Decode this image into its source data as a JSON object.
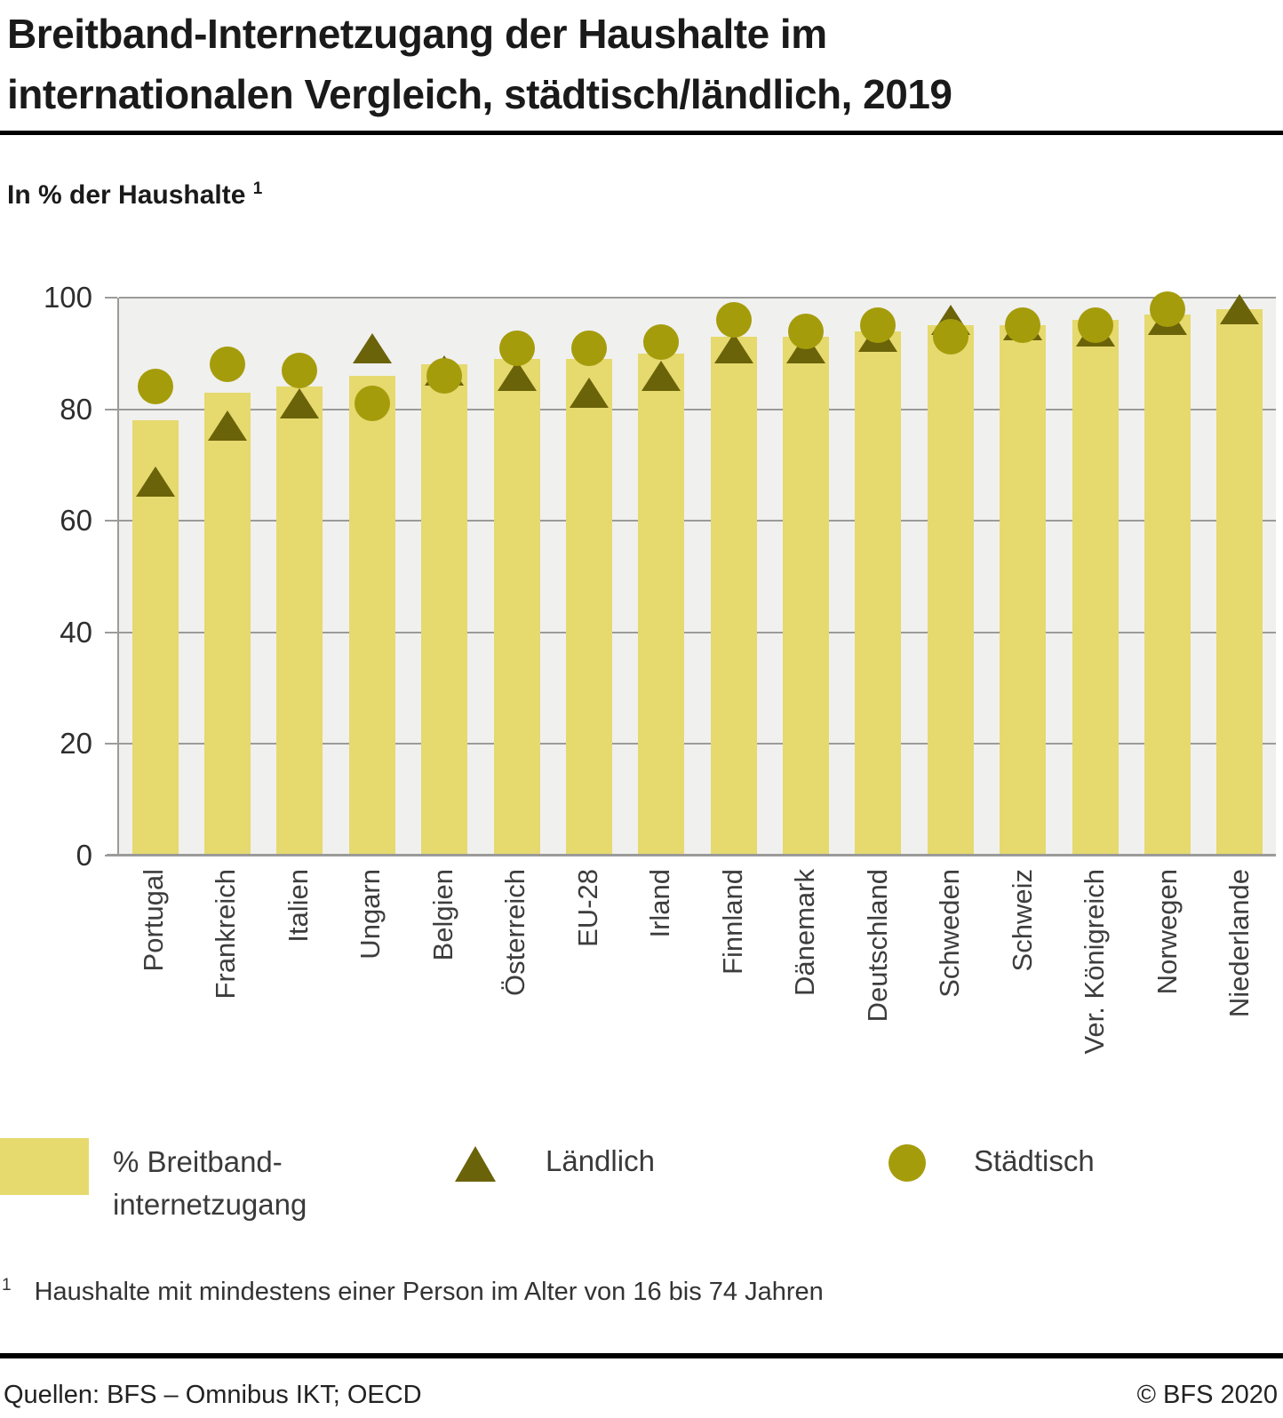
{
  "title": {
    "line1": "Breitband-Internetzugang der Haushalte im",
    "line2": "internationalen Vergleich, städtisch/ländlich, 2019"
  },
  "subtitle": {
    "text": "In % der Haushalte",
    "footnote_ref": "1"
  },
  "chart_data": {
    "type": "bar",
    "title": "Breitband-Internetzugang der Haushalte im internationalen Vergleich, städtisch/ländlich, 2019",
    "ylabel": "In % der Haushalte",
    "ylim": [
      0,
      100
    ],
    "yticks": [
      0,
      20,
      40,
      60,
      80,
      100
    ],
    "grid": true,
    "legend_position": "bottom",
    "categories": [
      "Portugal",
      "Frankreich",
      "Italien",
      "Ungarn",
      "Belgien",
      "Österreich",
      "EU-28",
      "Irland",
      "Finnland",
      "Dänemark",
      "Deutschland",
      "Schweden",
      "Schweiz",
      "Ver. Königreich",
      "Norwegen",
      "Niederlande"
    ],
    "series": [
      {
        "name": "% Breitbandinternetzugang",
        "type": "bar",
        "marker": "bar",
        "values": [
          78,
          83,
          84,
          86,
          88,
          89,
          89,
          90,
          93,
          93,
          94,
          95,
          95,
          96,
          97,
          98
        ]
      },
      {
        "name": "Ländlich",
        "type": "scatter",
        "marker": "triangle",
        "values": [
          67,
          77,
          81,
          91,
          87,
          86,
          83,
          86,
          91,
          91,
          93,
          96,
          95,
          94,
          96,
          98
        ]
      },
      {
        "name": "Städtisch",
        "type": "scatter",
        "marker": "circle",
        "values": [
          84,
          88,
          87,
          81,
          86,
          91,
          91,
          92,
          96,
          94,
          95,
          93,
          95,
          95,
          98,
          null
        ]
      }
    ]
  },
  "legend": {
    "bar_label_line1": "% Breitband-",
    "bar_label_line2": "internetzugang",
    "rural_label": "Ländlich",
    "urban_label": "Städtisch"
  },
  "footnote": {
    "ref": "1",
    "text": "Haushalte mit mindestens einer Person im Alter von 16 bis 74 Jahren"
  },
  "footer": {
    "sources": "Quellen: BFS – Omnibus IKT; OECD",
    "copyright": "© BFS 2020"
  },
  "colors": {
    "bar": "#e6d96e",
    "rural": "#6b6309",
    "urban": "#a59c0b",
    "plot_bg": "#f0f0ef",
    "grid": "#9b9b99",
    "title_text": "#1a1a1a",
    "axis_text": "#3d3d3d"
  }
}
